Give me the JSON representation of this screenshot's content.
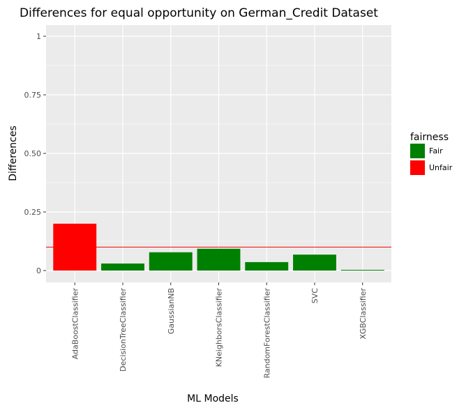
{
  "chart_data": {
    "type": "bar",
    "title": "Differences for equal opportunity on German_Credit Dataset",
    "xlabel": "ML Models",
    "ylabel": "Differences",
    "ylim": [
      0,
      1
    ],
    "yticks": [
      0,
      0.25,
      0.5,
      0.75,
      1
    ],
    "ytick_labels": [
      "0",
      "0.25",
      "0.50",
      "0.75",
      "1"
    ],
    "categories": [
      "AdaBoostClassifier",
      "DecisionTreeClassifier",
      "GaussianNB",
      "KNeighborsClassifier",
      "RandomForestClassifier",
      "SVC",
      "XGBClassifier"
    ],
    "values": [
      0.2,
      0.03,
      0.078,
      0.093,
      0.036,
      0.068,
      0.003
    ],
    "fairness": [
      "Unfair",
      "Fair",
      "Fair",
      "Fair",
      "Fair",
      "Fair",
      "Fair"
    ],
    "threshold": 0.1,
    "threshold_color": "#ff0000",
    "grid": true,
    "panel_background": "#ebebeb",
    "legend": {
      "title": "fairness",
      "placement": "right",
      "entries": [
        {
          "label": "Fair",
          "color": "#008000"
        },
        {
          "label": "Unfair",
          "color": "#ff0000"
        }
      ]
    }
  }
}
